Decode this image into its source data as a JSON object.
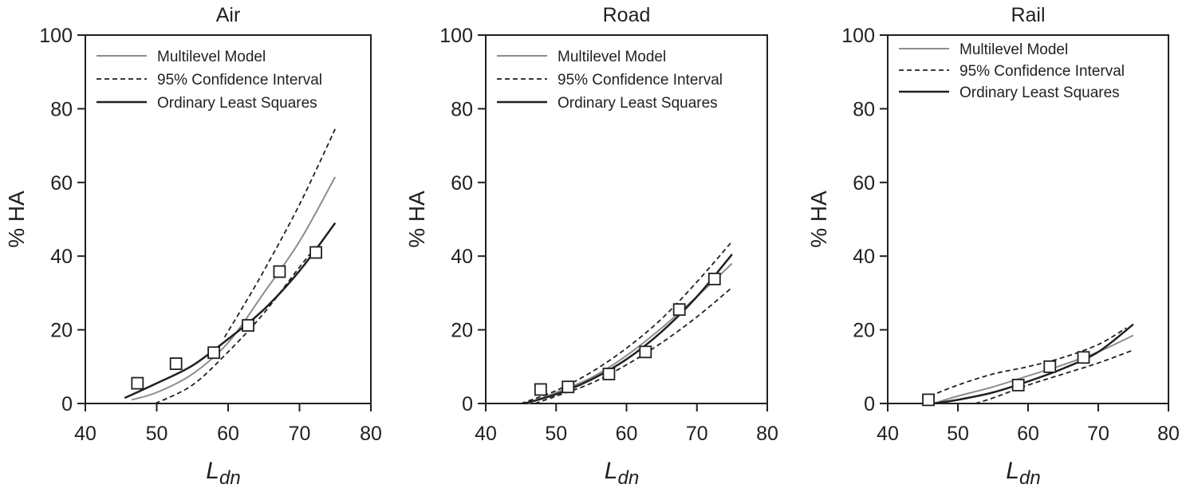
{
  "chart_data": [
    {
      "type": "line",
      "title": "Air",
      "xlabel": "L",
      "xlabel_sub": "dn",
      "ylabel": "% HA",
      "xlim": [
        40,
        80
      ],
      "ylim": [
        0,
        100
      ],
      "xticks": [
        "40",
        "50",
        "60",
        "70",
        "80"
      ],
      "yticks": [
        "0",
        "20",
        "40",
        "60",
        "80",
        "100"
      ],
      "grid": false,
      "legend_placement": "top-left",
      "legend": [
        "Multilevel Model",
        "95% Confidence Interval",
        "Ordinary Least Squares"
      ],
      "points": [
        [
          47.3,
          5.5
        ],
        [
          52.7,
          10.8
        ],
        [
          58,
          13.8
        ],
        [
          62.8,
          21.2
        ],
        [
          67.2,
          35.8
        ],
        [
          72.3,
          41
        ]
      ],
      "series": [
        {
          "name": "Multilevel Model",
          "style": "gray",
          "x": [
            46.5,
            50,
            55,
            60,
            65,
            70,
            75
          ],
          "y": [
            1,
            3,
            8,
            16.5,
            30,
            44,
            61.5
          ]
        },
        {
          "name": "95% Confidence Interval",
          "style": "dashed",
          "x": [
            59.5,
            62,
            65,
            70,
            75
          ],
          "y": [
            18,
            26,
            36,
            54,
            74.5
          ]
        },
        {
          "name": "95% Confidence Interval",
          "style": "dashed",
          "x": [
            49.8,
            55,
            60,
            65,
            70,
            72.5
          ],
          "y": [
            0,
            5,
            14,
            24.5,
            37,
            43
          ]
        },
        {
          "name": "Ordinary Least Squares",
          "style": "black",
          "x": [
            45.5,
            50,
            55,
            60,
            65,
            70,
            75
          ],
          "y": [
            1.5,
            5.5,
            10.3,
            17.5,
            25.5,
            36,
            49
          ]
        }
      ]
    },
    {
      "type": "line",
      "title": "Road",
      "xlabel": "L",
      "xlabel_sub": "dn",
      "ylabel": "% HA",
      "xlim": [
        40,
        80
      ],
      "ylim": [
        0,
        100
      ],
      "xticks": [
        "40",
        "50",
        "60",
        "70",
        "80"
      ],
      "yticks": [
        "0",
        "20",
        "40",
        "60",
        "80",
        "100"
      ],
      "grid": false,
      "legend_placement": "top-left",
      "legend": [
        "Multilevel Model",
        "95% Confidence Interval",
        "Ordinary Least Squares"
      ],
      "points": [
        [
          47.8,
          3.8
        ],
        [
          51.7,
          4.5
        ],
        [
          57.5,
          8
        ],
        [
          62.7,
          14
        ],
        [
          67.5,
          25.5
        ],
        [
          72.5,
          33.8
        ]
      ],
      "series": [
        {
          "name": "Multilevel Model",
          "style": "gray",
          "x": [
            46,
            50,
            55,
            60,
            65,
            70,
            75
          ],
          "y": [
            0,
            3,
            7,
            13,
            20.5,
            29,
            38
          ]
        },
        {
          "name": "95% Confidence Interval",
          "style": "dashed",
          "x": [
            45,
            50,
            55,
            60,
            65,
            70,
            75
          ],
          "y": [
            0,
            3.5,
            8.5,
            15,
            23,
            33,
            44
          ]
        },
        {
          "name": "95% Confidence Interval",
          "style": "dashed",
          "x": [
            47,
            50,
            55,
            60,
            65,
            70,
            75
          ],
          "y": [
            0,
            2,
            5.5,
            10.5,
            16.5,
            23.5,
            31.5
          ]
        },
        {
          "name": "Ordinary Least Squares",
          "style": "black",
          "x": [
            45.5,
            50,
            55,
            60,
            65,
            70,
            75
          ],
          "y": [
            0,
            2.5,
            6.5,
            12,
            19.5,
            29,
            40.5
          ]
        }
      ]
    },
    {
      "type": "line",
      "title": "Rail",
      "xlabel": "L",
      "xlabel_sub": "dn",
      "ylabel": "% HA",
      "xlim": [
        40,
        80
      ],
      "ylim": [
        0,
        100
      ],
      "xticks": [
        "40",
        "50",
        "60",
        "70",
        "80"
      ],
      "yticks": [
        "0",
        "20",
        "40",
        "60",
        "80",
        "100"
      ],
      "grid": false,
      "legend_placement": "top-left",
      "legend": [
        "Multilevel Model",
        "95% Confidence Interval",
        "Ordinary Least Squares"
      ],
      "points": [
        [
          45.8,
          1
        ],
        [
          58.6,
          5
        ],
        [
          63.1,
          10
        ],
        [
          67.9,
          12.5
        ]
      ],
      "series": [
        {
          "name": "Multilevel Model",
          "style": "gray",
          "x": [
            46.5,
            50,
            55,
            60,
            65,
            70,
            75
          ],
          "y": [
            0,
            2,
            4.5,
            7.5,
            10.5,
            14,
            18.5
          ]
        },
        {
          "name": "95% Confidence Interval",
          "style": "dashed",
          "x": [
            46,
            50,
            55,
            60,
            65,
            70,
            74
          ],
          "y": [
            2,
            5,
            8,
            10,
            12.5,
            16,
            20.5
          ]
        },
        {
          "name": "95% Confidence Interval",
          "style": "dashed",
          "x": [
            52.5,
            55,
            60,
            65,
            70,
            75
          ],
          "y": [
            0,
            1.5,
            5,
            8,
            11,
            14.5
          ]
        },
        {
          "name": "Ordinary Least Squares",
          "style": "black",
          "x": [
            46.5,
            50,
            55,
            60,
            65,
            70,
            75
          ],
          "y": [
            0,
            1,
            3,
            6,
            9.5,
            14,
            21.5
          ]
        }
      ]
    }
  ]
}
